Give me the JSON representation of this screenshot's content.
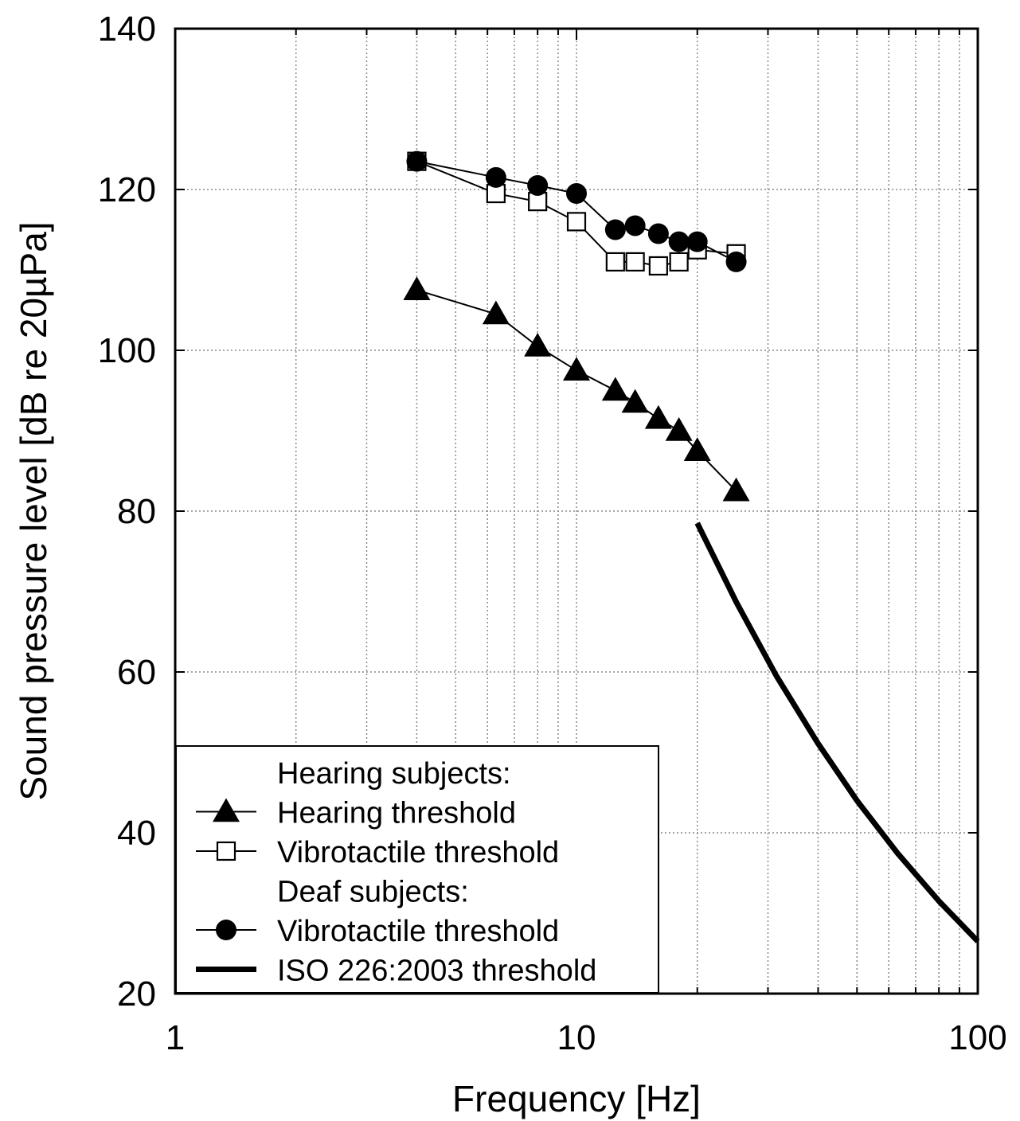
{
  "chart_data": {
    "type": "line",
    "xlabel": "Frequency [Hz]",
    "ylabel": "Sound pressure level [dB re 20µPa]",
    "xscale": "log",
    "xlim": [
      1,
      100
    ],
    "ylim": [
      20,
      140
    ],
    "grid": true,
    "x_tick_labels": [
      "1",
      "10",
      "100"
    ],
    "y_tick_labels": [
      "20",
      "40",
      "60",
      "80",
      "100",
      "120",
      "140"
    ],
    "legend": {
      "placement": "bottom-left",
      "entries": [
        {
          "kind": "header",
          "text": "Hearing subjects:"
        },
        {
          "kind": "series",
          "marker": "triangle",
          "series_index": 0,
          "text": "Hearing threshold"
        },
        {
          "kind": "series",
          "marker": "open-square",
          "series_index": 1,
          "text": "Vibrotactile threshold"
        },
        {
          "kind": "header",
          "text": "Deaf subjects:"
        },
        {
          "kind": "series",
          "marker": "circle",
          "series_index": 2,
          "text": "Vibrotactile threshold"
        },
        {
          "kind": "series",
          "marker": "thick-line",
          "series_index": 3,
          "text": "ISO 226:2003 threshold"
        }
      ]
    },
    "series": [
      {
        "name": "Hearing threshold",
        "group": "Hearing subjects",
        "marker": "triangle",
        "color": "#000000",
        "x": [
          4,
          6.3,
          8,
          10,
          12.5,
          14,
          16,
          18,
          20,
          25
        ],
        "y": [
          107.5,
          104.5,
          100.5,
          97.5,
          95,
          93.5,
          91.5,
          90,
          87.5,
          82.5
        ]
      },
      {
        "name": "Vibrotactile threshold",
        "group": "Hearing subjects",
        "marker": "open-square",
        "color": "#000000",
        "x": [
          4,
          6.3,
          8,
          10,
          12.5,
          14,
          16,
          18,
          20,
          25
        ],
        "y": [
          123.5,
          119.5,
          118.5,
          116,
          111,
          111,
          110.5,
          111,
          112.5,
          112
        ]
      },
      {
        "name": "Vibrotactile threshold",
        "group": "Deaf subjects",
        "marker": "circle",
        "color": "#000000",
        "x": [
          4,
          6.3,
          8,
          10,
          12.5,
          14,
          16,
          18,
          20,
          25
        ],
        "y": [
          123.5,
          121.5,
          120.5,
          119.5,
          115,
          115.5,
          114.5,
          113.5,
          113.5,
          111
        ]
      },
      {
        "name": "ISO 226:2003 threshold",
        "marker": "none",
        "line": "thick",
        "color": "#000000",
        "x": [
          20,
          25,
          31.5,
          40,
          50,
          63,
          80,
          100
        ],
        "y": [
          78.5,
          68.7,
          59.5,
          51.1,
          44.0,
          37.5,
          31.5,
          26.5
        ]
      }
    ]
  }
}
